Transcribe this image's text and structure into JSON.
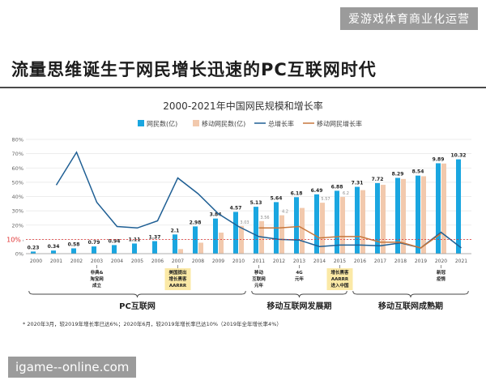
{
  "brand_badge": "爱游戏体育商业化运营",
  "headline": "流量思维诞生于网民增长迅速的PC互联网时代",
  "site_banner": "igame--online.com",
  "footnote": "* 2020年3月，较2019年增长率已达6%；2020年6月，较2019年增长率已达10%（2019年全年增长率4%）",
  "colors": {
    "netizens": "#1aa6e0",
    "mobile": "#f2c9ad",
    "total_growth": "#1f5f94",
    "mobile_growth": "#c7773c",
    "ten_percent": "#e03030",
    "event_box": "#fbe9a6"
  },
  "chart_data": {
    "type": "bar",
    "title": "2000-2021年中国网民规模和增长率",
    "categories": [
      "2000",
      "2001",
      "2002",
      "2003",
      "2004",
      "2005",
      "2006",
      "2007",
      "2008",
      "2009",
      "2010",
      "2011",
      "2012",
      "2013",
      "2014",
      "2015",
      "2016",
      "2017",
      "2018",
      "2019",
      "2020",
      "2021"
    ],
    "series": [
      {
        "name": "网民数(亿)",
        "kind": "bar",
        "axis": "left",
        "values": [
          0.23,
          0.34,
          0.58,
          0.79,
          0.94,
          1.11,
          1.37,
          2.1,
          2.98,
          3.84,
          4.57,
          5.13,
          5.64,
          6.18,
          6.49,
          6.88,
          7.31,
          7.72,
          8.29,
          8.54,
          9.89,
          10.32
        ],
        "labels": [
          "0.23",
          "0.34",
          "0.58",
          "0.79",
          "0.94",
          "1.11",
          "1.37",
          "2.1",
          "2.98",
          "3.84",
          "4.57",
          "5.13",
          "5.64",
          "6.18",
          "6.49",
          "6.88",
          "7.31",
          "7.72",
          "8.29",
          "8.54",
          "9.89",
          "10.32"
        ]
      },
      {
        "name": "移动网民数(亿)",
        "kind": "bar",
        "axis": "left",
        "values": [
          null,
          null,
          null,
          null,
          null,
          null,
          null,
          0.5,
          1.2,
          2.3,
          3.03,
          3.56,
          4.2,
          5.0,
          5.57,
          6.2,
          6.95,
          7.53,
          8.17,
          8.47,
          9.86,
          null
        ],
        "labels": [
          "",
          "",
          "",
          "",
          "",
          "",
          "",
          "",
          "",
          "",
          "3.03",
          "3.56",
          "4.2",
          "",
          "5.57",
          "6.2",
          "",
          "",
          "",
          "",
          "",
          ""
        ]
      },
      {
        "name": "总增长率",
        "kind": "line",
        "axis": "right",
        "values": [
          null,
          48,
          71,
          36,
          19,
          18,
          23,
          53,
          42,
          28,
          19,
          12,
          10,
          9.5,
          5,
          6,
          6,
          5.5,
          7.5,
          4,
          15,
          4
        ]
      },
      {
        "name": "移动网民增长率",
        "kind": "line",
        "axis": "right",
        "values": [
          null,
          null,
          null,
          null,
          null,
          null,
          null,
          null,
          null,
          null,
          null,
          18,
          18,
          19,
          11,
          12,
          12,
          8,
          8,
          4,
          14,
          null
        ]
      }
    ],
    "right_axis": {
      "ticks": [
        "0%",
        "10%",
        "20%",
        "30%",
        "40%",
        "50%",
        "60%",
        "70%",
        "80%"
      ],
      "range": [
        0,
        80
      ]
    },
    "left_axis": {
      "range": [
        0,
        12.5
      ]
    },
    "reference_line": {
      "value": 10,
      "label": "10%"
    },
    "events": [
      {
        "year": "2003",
        "lines": [
          "非典&",
          "淘宝网",
          "成立"
        ],
        "highlight": false
      },
      {
        "year": "2007",
        "lines": [
          "美国提出",
          "增长黑客",
          "AARRR"
        ],
        "highlight": true
      },
      {
        "year": "2011",
        "lines": [
          "移动",
          "互联网",
          "元年"
        ],
        "highlight": false
      },
      {
        "year": "2013",
        "lines": [
          "4G",
          "元年"
        ],
        "highlight": false
      },
      {
        "year": "2015",
        "lines": [
          "增长黑客",
          "AARRR",
          "进入中国"
        ],
        "highlight": true
      },
      {
        "year": "2020",
        "lines": [
          "新冠",
          "疫情"
        ],
        "highlight": false
      }
    ],
    "periods": [
      {
        "label": "PC互联网",
        "from": "2000",
        "to": "2010"
      },
      {
        "label": "移动互联网发展期",
        "from": "2011",
        "to": "2015"
      },
      {
        "label": "移动互联网成熟期",
        "from": "2016",
        "to": "2021"
      }
    ],
    "legend_position": "top",
    "grid": true
  }
}
